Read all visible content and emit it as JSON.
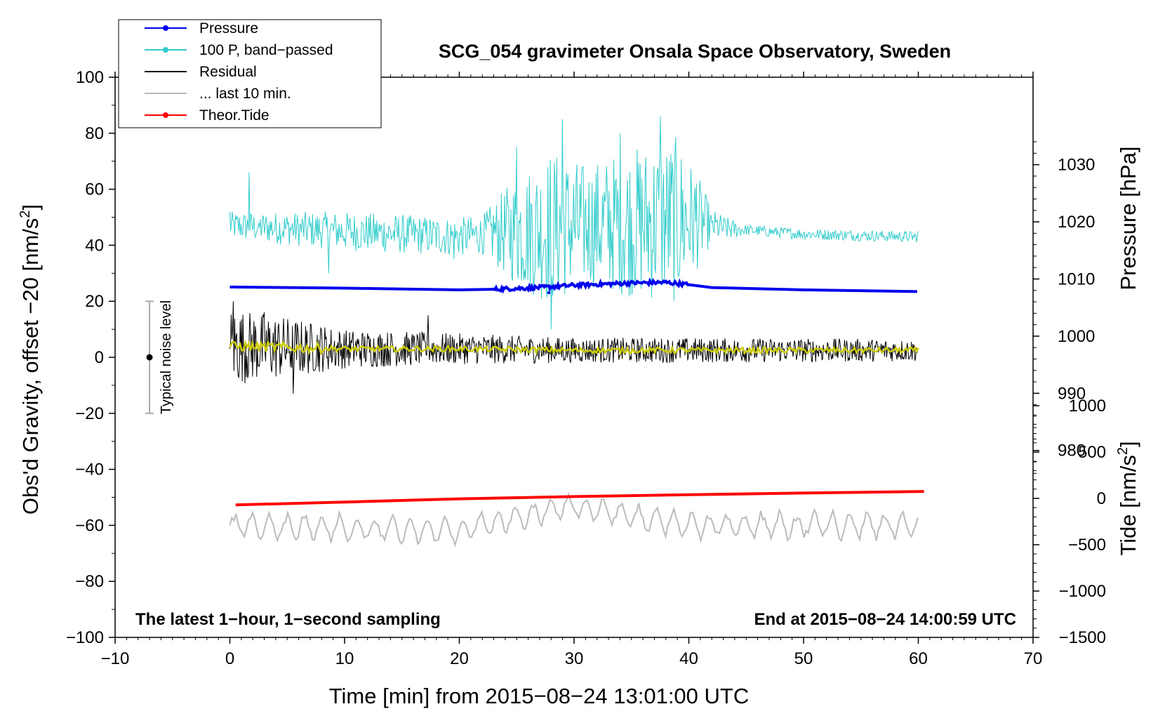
{
  "chart_data": {
    "type": "line",
    "title": "SCG_054 gravimeter Onsala Space Observatory, Sweden",
    "xlabel": "Time [min] from 2015−08−24 13:01:00 UTC",
    "ylabel": "Obs'd Gravity, offset −20 [nm/s",
    "ylabel_sup": "2",
    "ylabel_close": "]",
    "xlim": [
      -10,
      70
    ],
    "ylim": [
      -100,
      100
    ],
    "xticks": [
      -10,
      0,
      10,
      20,
      30,
      40,
      50,
      60,
      70
    ],
    "xtick_labels": [
      "−10",
      "0",
      "10",
      "20",
      "30",
      "40",
      "50",
      "60",
      "70"
    ],
    "yticks": [
      -100,
      -80,
      -60,
      -40,
      -20,
      0,
      20,
      40,
      60,
      80,
      100
    ],
    "ytick_labels": [
      "−100",
      "−80",
      "−60",
      "−40",
      "−20",
      "0",
      "20",
      "40",
      "60",
      "80",
      "100"
    ],
    "pressure_axis": {
      "label": "Pressure [hPa]",
      "ticks": [
        980,
        990,
        1000,
        1010,
        1020,
        1030
      ],
      "tick_labels": [
        "980",
        "990",
        "1000",
        "1010",
        "1020",
        "1030"
      ],
      "range": [
        947.3,
        1045.3
      ]
    },
    "tide_axis": {
      "label": "Tide [nm/s",
      "label_sup": "2",
      "label_close": "]",
      "ticks": [
        -1500,
        -1000,
        -500,
        0,
        500,
        1000
      ],
      "tick_labels": [
        "−1500",
        "−1000",
        "−500",
        "0",
        "500",
        "1000"
      ],
      "range": [
        -1500,
        1500
      ]
    },
    "legend": {
      "position": "top-left",
      "entries": [
        {
          "name": "Pressure",
          "color": "#0000ee",
          "marker": true
        },
        {
          "name": "100 P, band−passed",
          "color": "#33cccc",
          "marker": true
        },
        {
          "name": "Residual",
          "color": "#000000",
          "marker": false
        },
        {
          "name": "... last 10 min.",
          "color": "#bbbbbb",
          "marker": false
        },
        {
          "name": "Theor.Tide",
          "color": "#ff0000",
          "marker": true
        }
      ]
    },
    "series": [
      {
        "name": "Pressure",
        "color": "#0000ee",
        "axis": "pressure",
        "x": [
          0,
          10,
          20,
          23,
          27,
          30,
          35,
          38,
          40,
          42,
          50,
          60
        ],
        "y": [
          1008.6,
          1008.4,
          1008.1,
          1008.2,
          1008.5,
          1008.9,
          1009.3,
          1009.4,
          1009.0,
          1008.5,
          1008.1,
          1007.8
        ]
      },
      {
        "name": "100 P, band−passed",
        "color": "#33cccc",
        "axis": "gravity",
        "x": [
          0,
          1.7,
          2.5,
          8.6,
          12,
          19.5,
          23,
          25,
          28,
          29,
          34,
          37.5,
          40.7,
          42,
          45,
          50,
          55,
          60
        ],
        "y": [
          52,
          66,
          48,
          30,
          42,
          35,
          44,
          75,
          10,
          85,
          80,
          86,
          62,
          48,
          44,
          44,
          43,
          45
        ],
        "envelope": [
          [
            0,
            5
          ],
          [
            10,
            7
          ],
          [
            22,
            7
          ],
          [
            25,
            20
          ],
          [
            28,
            28
          ],
          [
            31,
            22
          ],
          [
            36,
            28
          ],
          [
            39,
            30
          ],
          [
            41,
            15
          ],
          [
            42,
            6
          ],
          [
            45,
            2
          ],
          [
            60,
            2
          ]
        ],
        "center": [
          [
            0,
            47
          ],
          [
            10,
            45
          ],
          [
            20,
            43
          ],
          [
            30,
            47
          ],
          [
            40,
            49
          ],
          [
            43,
            46
          ],
          [
            50,
            44
          ],
          [
            60,
            43
          ]
        ]
      },
      {
        "name": "Residual",
        "color": "#000000",
        "axis": "gravity",
        "x": [
          0,
          0.3,
          3,
          5.5,
          8,
          17.3,
          40,
          60
        ],
        "y": [
          3,
          20,
          16,
          -13,
          10,
          15,
          3,
          2
        ],
        "envelope": [
          [
            0,
            14
          ],
          [
            5,
            11
          ],
          [
            10,
            7
          ],
          [
            20,
            5.5
          ],
          [
            30,
            4.5
          ],
          [
            40,
            4.5
          ],
          [
            60,
            4
          ]
        ]
      },
      {
        "name": "Residual, smoothed",
        "color": "#cccc00",
        "axis": "gravity",
        "x": [
          0,
          5,
          10,
          20,
          30,
          40,
          50,
          60
        ],
        "y": [
          4,
          3.5,
          3,
          3,
          2.5,
          2.5,
          2.5,
          2.5
        ]
      },
      {
        "name": "... last 10 min.",
        "color": "#bbbbbb",
        "axis": "gravity",
        "x": [
          0,
          10,
          20,
          29.3,
          40,
          60
        ],
        "y": [
          -60,
          -61,
          -62,
          -53,
          -60,
          -60
        ],
        "amplitude": 5
      },
      {
        "name": "Theor.Tide",
        "color": "#ff0000",
        "axis": "tide",
        "x": [
          0.5,
          10,
          20,
          30,
          40,
          50,
          60.5
        ],
        "y": [
          -70,
          -40,
          -5,
          20,
          40,
          58,
          75
        ]
      }
    ],
    "noise_indicator": {
      "label": "Typical noise level",
      "x": -7,
      "y": 0,
      "low": -20,
      "high": 20
    },
    "annotations": {
      "bottom_left": "The latest 1−hour, 1−second sampling",
      "bottom_right": "End at 2015−08−24 14:00:59 UTC"
    }
  }
}
